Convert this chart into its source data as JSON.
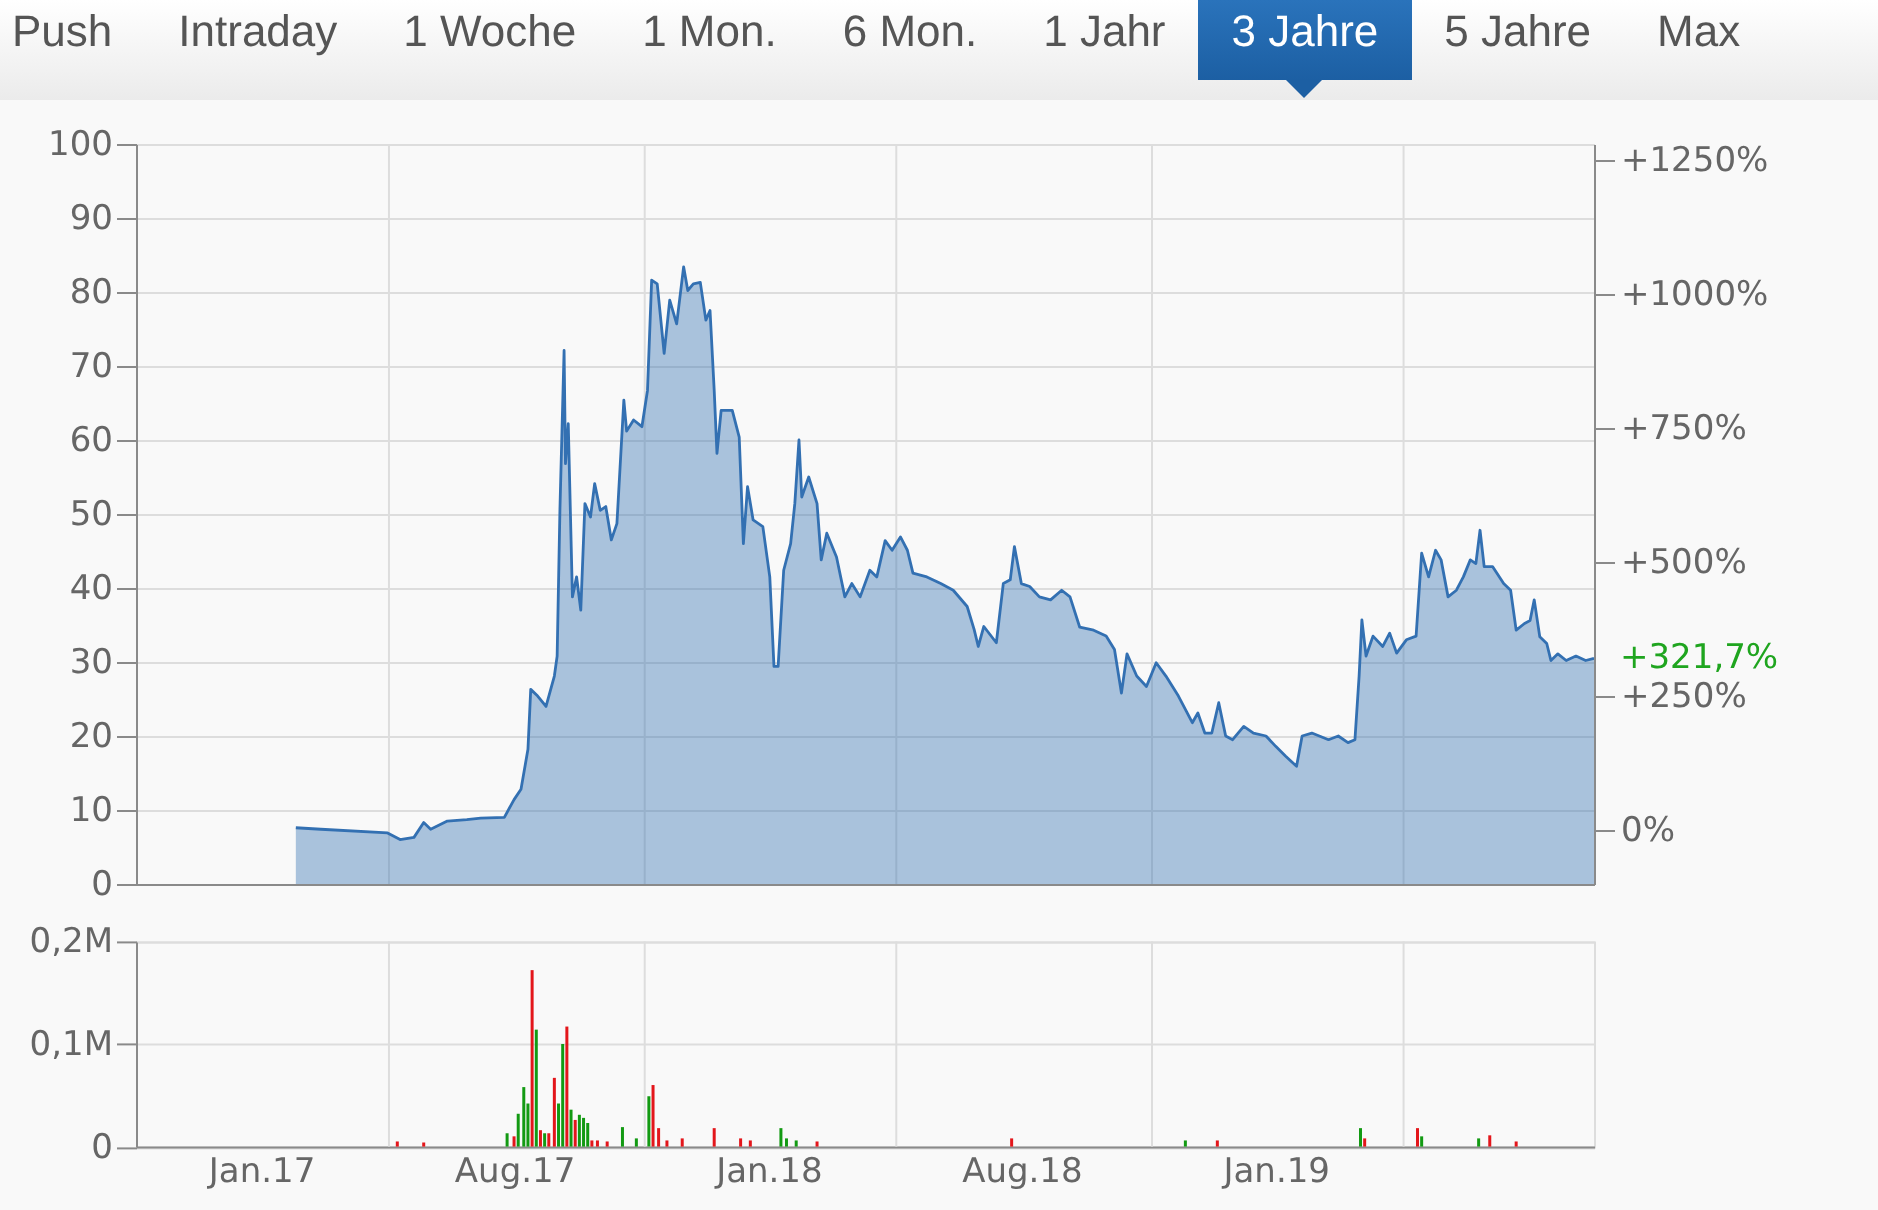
{
  "chart_data": [
    {
      "type": "other",
      "annotations": [
        "Push",
        "Intraday",
        "1 Woche",
        "1 Mon.",
        "6 Mon.",
        "1 Jahr",
        "3 Jahre",
        "5 Jahre",
        "Max"
      ]
    },
    {
      "type": "area",
      "grid": true,
      "tick_labels": "y",
      "xlim": [
        "2016-11-02",
        "2019-09-17"
      ],
      "xticks": [
        {
          "value": "2017-05-03",
          "label": null
        },
        {
          "value": "2017-11-03",
          "label": null
        },
        {
          "value": "2018-05-03",
          "label": null
        },
        {
          "value": "2018-11-03",
          "label": null
        },
        {
          "value": "2019-05-03",
          "label": null
        }
      ],
      "ylim": [
        0,
        100
      ],
      "yticks": [
        0,
        10,
        20,
        30,
        40,
        50,
        60,
        70,
        80,
        90,
        100
      ],
      "y2lim": [
        -100,
        1280
      ],
      "y2ticks": [
        {
          "value": 0,
          "label": "0%"
        },
        {
          "value": 250,
          "label": "+250%"
        },
        {
          "value": 500,
          "label": "+500%"
        },
        {
          "value": 750,
          "label": "+750%"
        },
        {
          "value": 1000,
          "label": "+1000%"
        },
        {
          "value": 1250,
          "label": "+1250%"
        }
      ],
      "annotations": [
        {
          "text": "+321,7%",
          "x": "2019-09-17",
          "y": 30.5
        }
      ],
      "x": [
        "2017-02-25",
        "2017-03-15",
        "2017-05-02",
        "2017-05-11",
        "2017-05-21",
        "2017-05-28",
        "2017-06-02",
        "2017-06-14",
        "2017-06-28",
        "2017-07-08",
        "2017-07-25",
        "2017-08-01",
        "2017-08-06",
        "2017-08-11",
        "2017-08-13",
        "2017-08-18",
        "2017-08-24",
        "2017-08-30",
        "2017-09-01",
        "2017-09-03",
        "2017-09-06",
        "2017-09-07",
        "2017-09-09",
        "2017-09-12",
        "2017-09-15",
        "2017-09-18",
        "2017-09-21",
        "2017-09-25",
        "2017-09-28",
        "2017-10-02",
        "2017-10-06",
        "2017-10-10",
        "2017-10-14",
        "2017-10-19",
        "2017-10-21",
        "2017-10-26",
        "2017-11-01",
        "2017-11-05",
        "2017-11-08",
        "2017-11-12",
        "2017-11-17",
        "2017-11-21",
        "2017-11-26",
        "2017-12-01",
        "2017-12-04",
        "2017-12-08",
        "2017-12-13",
        "2017-12-17",
        "2017-12-20",
        "2017-12-23",
        "2017-12-25",
        "2017-12-28",
        "2018-01-05",
        "2018-01-10",
        "2018-01-13",
        "2018-01-16",
        "2018-01-20",
        "2018-01-27",
        "2018-02-01",
        "2018-02-04",
        "2018-02-07",
        "2018-02-11",
        "2018-02-16",
        "2018-02-19",
        "2018-02-22",
        "2018-02-24",
        "2018-03-01",
        "2018-03-07",
        "2018-03-10",
        "2018-03-14",
        "2018-03-21",
        "2018-03-27",
        "2018-04-01",
        "2018-04-07",
        "2018-04-14",
        "2018-04-19",
        "2018-04-25",
        "2018-04-30",
        "2018-05-06",
        "2018-05-11",
        "2018-05-15",
        "2018-05-25",
        "2018-06-04",
        "2018-06-13",
        "2018-06-23",
        "2018-06-28",
        "2018-07-01",
        "2018-07-05",
        "2018-07-14",
        "2018-07-19",
        "2018-07-24",
        "2018-07-27",
        "2018-08-01",
        "2018-08-07",
        "2018-08-14",
        "2018-08-22",
        "2018-08-30",
        "2018-09-05",
        "2018-09-12",
        "2018-09-22",
        "2018-10-01",
        "2018-10-07",
        "2018-10-12",
        "2018-10-16",
        "2018-10-23",
        "2018-10-30",
        "2018-11-06",
        "2018-11-13",
        "2018-11-22",
        "2018-12-02",
        "2018-12-06",
        "2018-12-11",
        "2018-12-16",
        "2018-12-21",
        "2018-12-26",
        "2018-12-31",
        "2019-01-08",
        "2019-01-15",
        "2019-01-24",
        "2019-01-31",
        "2019-02-07",
        "2019-02-15",
        "2019-02-19",
        "2019-02-26",
        "2019-03-10",
        "2019-03-17",
        "2019-03-24",
        "2019-03-29",
        "2019-04-01",
        "2019-04-03",
        "2019-04-06",
        "2019-04-11",
        "2019-04-18",
        "2019-04-23",
        "2019-04-28",
        "2019-05-05",
        "2019-05-12",
        "2019-05-16",
        "2019-05-21",
        "2019-05-26",
        "2019-05-30",
        "2019-06-04",
        "2019-06-10",
        "2019-06-15",
        "2019-06-20",
        "2019-06-24",
        "2019-06-27",
        "2019-06-30",
        "2019-07-06",
        "2019-07-14",
        "2019-07-19",
        "2019-07-23",
        "2019-07-29",
        "2019-08-02",
        "2019-08-05",
        "2019-08-09",
        "2019-08-14",
        "2019-08-17",
        "2019-08-22",
        "2019-08-28",
        "2019-09-04",
        "2019-09-11",
        "2019-09-17"
      ],
      "series": [
        {
          "color": "#3370b2",
          "values": [
            7.6,
            7.4,
            6.9,
            6.0,
            6.3,
            8.3,
            7.4,
            8.5,
            8.7,
            8.9,
            9.0,
            11.4,
            12.8,
            18.2,
            26.3,
            25.4,
            24.0,
            28.1,
            30.8,
            50.5,
            72.1,
            56.8,
            62.2,
            38.8,
            41.5,
            37.0,
            51.4,
            49.6,
            54.1,
            50.5,
            51.0,
            46.5,
            48.7,
            65.4,
            61.2,
            62.7,
            61.8,
            66.7,
            81.6,
            81.1,
            71.7,
            78.9,
            75.7,
            83.4,
            80.2,
            81.1,
            81.3,
            76.2,
            77.5,
            66.7,
            58.2,
            64.0,
            64.0,
            60.4,
            46.0,
            53.7,
            49.2,
            48.3,
            41.5,
            29.4,
            29.4,
            42.4,
            46.0,
            51.4,
            60.0,
            52.3,
            55.0,
            51.4,
            43.8,
            47.4,
            44.2,
            38.8,
            40.6,
            38.8,
            42.4,
            41.5,
            46.4,
            45.1,
            46.9,
            45.1,
            42.0,
            41.5,
            40.6,
            39.7,
            37.5,
            34.4,
            32.1,
            34.8,
            32.6,
            40.6,
            41.1,
            45.6,
            40.6,
            40.2,
            38.8,
            38.4,
            39.7,
            38.8,
            34.7,
            34.3,
            33.5,
            31.7,
            25.8,
            31.1,
            28.1,
            26.7,
            29.9,
            28.1,
            25.4,
            21.8,
            23.1,
            20.4,
            20.4,
            24.5,
            20.0,
            19.5,
            21.3,
            20.4,
            20.0,
            18.6,
            17.3,
            15.9,
            20.0,
            20.4,
            19.5,
            20.0,
            19.1,
            19.5,
            28.1,
            35.7,
            30.8,
            33.5,
            32.1,
            33.9,
            31.2,
            33.0,
            33.5,
            44.7,
            41.5,
            45.1,
            43.8,
            38.8,
            39.7,
            41.5,
            43.8,
            43.3,
            47.8,
            42.9,
            42.9,
            40.6,
            39.7,
            34.3,
            35.2,
            35.6,
            38.4,
            33.4,
            32.5,
            30.2,
            31.1,
            30.2,
            30.8,
            30.2,
            30.5
          ]
        }
      ]
    },
    {
      "type": "bar",
      "grid": true,
      "xlim": [
        "2016-11-02",
        "2019-09-17"
      ],
      "xticks": [
        {
          "value": "2017-01-31",
          "label": "Jan.17"
        },
        {
          "value": "2017-05-03",
          "label": null
        },
        {
          "value": "2017-08-01",
          "label": "Aug.17"
        },
        {
          "value": "2017-11-03",
          "label": null
        },
        {
          "value": "2018-01-31",
          "label": "Jan.18"
        },
        {
          "value": "2018-05-03",
          "label": null
        },
        {
          "value": "2018-08-01",
          "label": "Aug.18"
        },
        {
          "value": "2018-11-03",
          "label": null
        },
        {
          "value": "2019-01-31",
          "label": "Jan.19"
        },
        {
          "value": "2019-05-03",
          "label": null
        }
      ],
      "ylim": [
        0,
        0.2
      ],
      "yticks": [
        0,
        {
          "value": 0.1,
          "label": "0,1M"
        },
        {
          "value": 0.2,
          "label": "0,2M"
        }
      ],
      "series": [
        {
          "color": "#139a13",
          "x": [
            "2017-07-27",
            "2017-08-04",
            "2017-08-08",
            "2017-08-11",
            "2017-08-17",
            "2017-08-23",
            "2017-09-02",
            "2017-09-05",
            "2017-09-11",
            "2017-09-17",
            "2017-09-20",
            "2017-09-23",
            "2017-10-18",
            "2017-10-28",
            "2017-11-06",
            "2018-02-09",
            "2018-02-13",
            "2018-02-20",
            "2018-11-27",
            "2019-04-02",
            "2019-05-16",
            "2019-06-26"
          ],
          "values": [
            0.013,
            0.032,
            0.058,
            0.042,
            0.114,
            0.013,
            0.042,
            0.1,
            0.036,
            0.031,
            0.028,
            0.023,
            0.019,
            0.008,
            0.049,
            0.018,
            0.008,
            0.006,
            0.006,
            0.018,
            0.01,
            0.008
          ]
        },
        {
          "color": "#e3161b",
          "x": [
            "2017-05-09",
            "2017-05-28",
            "2017-08-01",
            "2017-08-14",
            "2017-08-20",
            "2017-08-26",
            "2017-08-30",
            "2017-09-08",
            "2017-09-14",
            "2017-09-26",
            "2017-09-30",
            "2017-10-07",
            "2017-11-09",
            "2017-11-13",
            "2017-11-19",
            "2017-11-30",
            "2017-12-23",
            "2018-01-11",
            "2018-01-18",
            "2018-03-07",
            "2018-07-25",
            "2018-12-20",
            "2019-04-05",
            "2019-05-13",
            "2019-07-04",
            "2019-07-23"
          ],
          "values": [
            0.005,
            0.004,
            0.01,
            0.172,
            0.016,
            0.013,
            0.067,
            0.117,
            0.026,
            0.006,
            0.006,
            0.005,
            0.06,
            0.018,
            0.006,
            0.008,
            0.018,
            0.008,
            0.006,
            0.005,
            0.008,
            0.006,
            0.008,
            0.018,
            0.011,
            0.005
          ]
        }
      ]
    }
  ]
}
